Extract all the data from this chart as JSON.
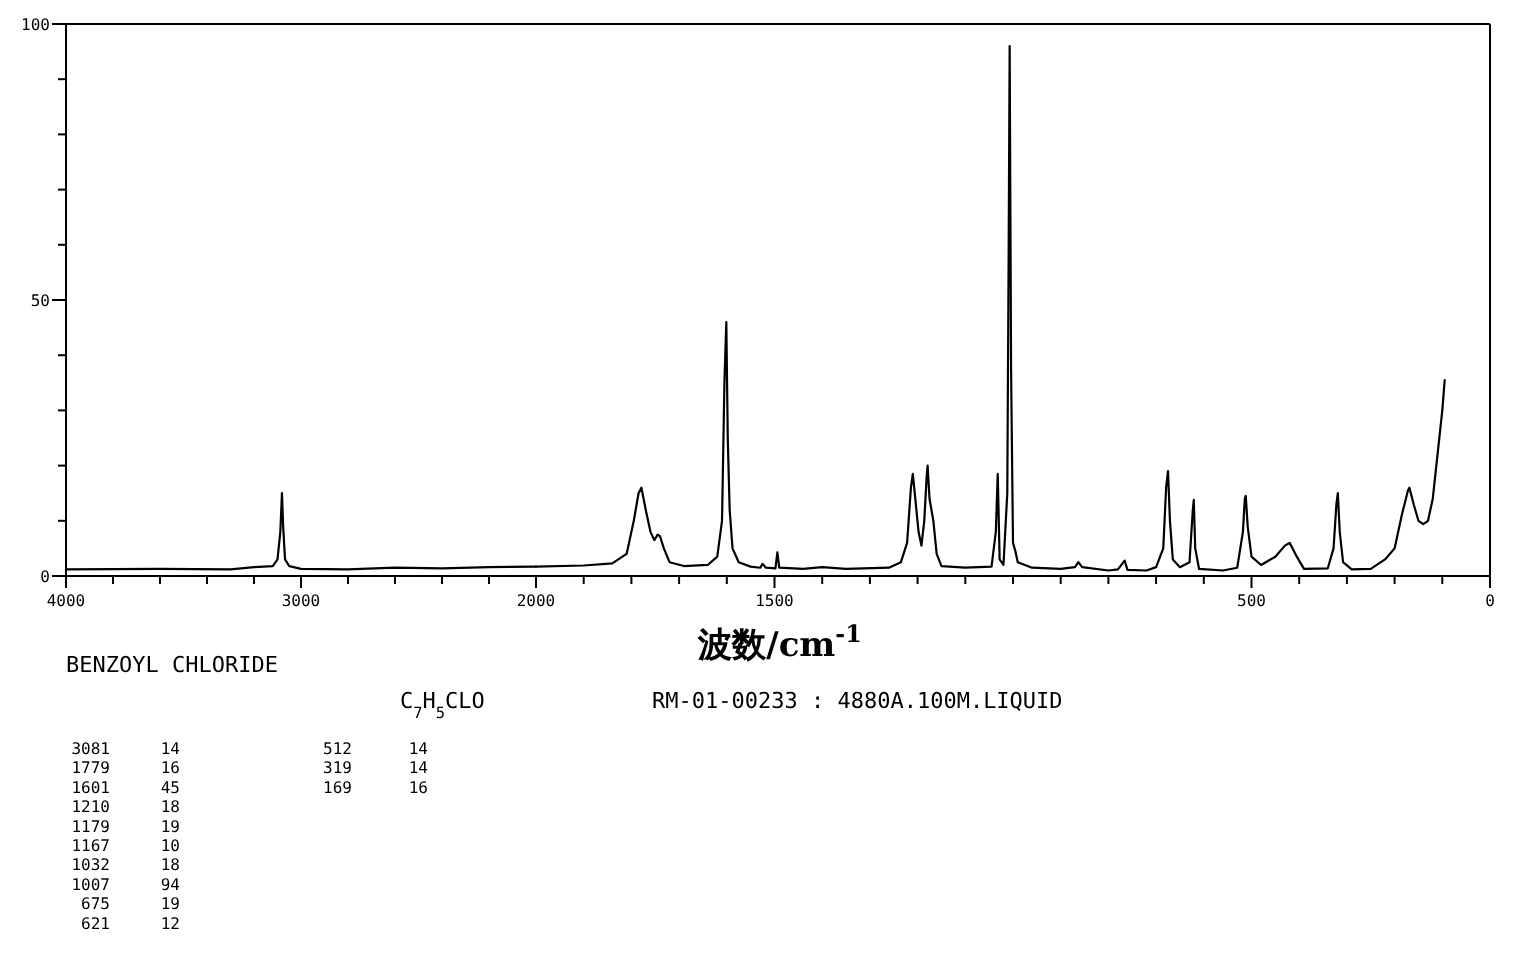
{
  "chart_data": [
    {
      "type": "line",
      "title": "BENZOYL CHLORIDE",
      "xlim": [
        4000,
        2000
      ],
      "ylim": [
        0,
        100
      ],
      "xticks": [
        4000,
        {
          "value": 3800,
          "label": null
        },
        {
          "value": 3600,
          "label": null
        },
        {
          "value": 3400,
          "label": null
        },
        {
          "value": 3200,
          "label": null
        },
        3000,
        {
          "value": 2800,
          "label": null
        },
        {
          "value": 2600,
          "label": null
        },
        {
          "value": 2400,
          "label": null
        },
        {
          "value": 2200,
          "label": null
        },
        2000
      ],
      "yticks": [
        0,
        {
          "value": 10,
          "label": null
        },
        {
          "value": 20,
          "label": null
        },
        {
          "value": 30,
          "label": null
        },
        {
          "value": 40,
          "label": null
        },
        50,
        {
          "value": 60,
          "label": null
        },
        {
          "value": 70,
          "label": null
        },
        {
          "value": 80,
          "label": null
        },
        {
          "value": 90,
          "label": null
        },
        100
      ],
      "grid": false,
      "marker": "none",
      "line_style": "solid",
      "annotations": [
        "C$_{7}$H$_{5}$CLO",
        "RM-01-00233 : 4880A.100M.LIQUID",
        "3081",
        "14",
        "1779",
        "16",
        "1601",
        "45",
        "1210",
        "18",
        "1179",
        "19",
        "1167",
        "10",
        "1032",
        "18",
        "1007",
        "94",
        "675",
        "19",
        "621",
        "12",
        "512",
        "14",
        "319",
        "14",
        "169",
        "16"
      ],
      "series": [
        {
          "color": "#000000",
          "x": [
            4000,
            3600,
            3300,
            3200,
            3120,
            3100,
            3088,
            3083,
            3081,
            3076,
            3068,
            3050,
            3000,
            2800,
            2600,
            2400,
            2200,
            2000
          ],
          "values": [
            1.2,
            1.3,
            1.2,
            1.6,
            1.8,
            3,
            8,
            13,
            15,
            9,
            3,
            1.8,
            1.3,
            1.2,
            1.5,
            1.4,
            1.6,
            1.7
          ]
        }
      ]
    },
    {
      "type": "line",
      "xlabel": "波数/cm$^{-1}$",
      "xlim": [
        2000,
        0
      ],
      "ylim": [
        0,
        100
      ],
      "tick_labels": "x",
      "xticks": [
        {
          "value": 1900,
          "label": null
        },
        {
          "value": 1800,
          "label": null
        },
        {
          "value": 1700,
          "label": null
        },
        {
          "value": 1600,
          "label": null
        },
        1500,
        {
          "value": 1400,
          "label": null
        },
        {
          "value": 1300,
          "label": null
        },
        {
          "value": 1200,
          "label": null
        },
        {
          "value": 1100,
          "label": null
        },
        {
          "value": 1000,
          "label": null
        },
        {
          "value": 900,
          "label": null
        },
        {
          "value": 800,
          "label": null
        },
        {
          "value": 700,
          "label": null
        },
        {
          "value": 600,
          "label": null
        },
        500,
        {
          "value": 400,
          "label": null
        },
        {
          "value": 300,
          "label": null
        },
        {
          "value": 200,
          "label": null
        },
        {
          "value": 100,
          "label": null
        },
        0
      ],
      "grid": false,
      "marker": "none",
      "line_style": "solid",
      "series": [
        {
          "color": "#000000",
          "x": [
            2000,
            1900,
            1840,
            1810,
            1795,
            1785,
            1779,
            1770,
            1760,
            1752,
            1745,
            1740,
            1732,
            1720,
            1690,
            1640,
            1620,
            1610,
            1605,
            1601,
            1598,
            1594,
            1588,
            1575,
            1550,
            1530,
            1525,
            1518,
            1498,
            1494,
            1490,
            1440,
            1400,
            1350,
            1260,
            1235,
            1222,
            1214,
            1210,
            1206,
            1198,
            1192,
            1186,
            1181,
            1179,
            1175,
            1167,
            1160,
            1150,
            1100,
            1045,
            1036,
            1032,
            1028,
            1020,
            1012,
            1009,
            1007,
            1004,
            1000,
            995,
            990,
            960,
            900,
            870,
            863,
            855,
            800,
            780,
            766,
            760,
            720,
            700,
            685,
            679,
            675,
            671,
            665,
            650,
            630,
            623,
            621,
            618,
            610,
            560,
            530,
            518,
            514,
            512,
            508,
            500,
            480,
            450,
            430,
            420,
            405,
            390,
            340,
            328,
            322,
            319,
            315,
            308,
            290,
            250,
            220,
            200,
            185,
            172,
            169,
            160,
            150,
            140,
            130,
            120,
            110,
            100,
            95
          ],
          "values": [
            1.7,
            1.9,
            2.3,
            4,
            10,
            15,
            16,
            12,
            8,
            6.5,
            7.5,
            7.2,
            5,
            2.5,
            1.8,
            2,
            3.5,
            10,
            35,
            46,
            25,
            12,
            5,
            2.5,
            1.7,
            1.5,
            2.2,
            1.5,
            1.4,
            4.3,
            1.5,
            1.3,
            1.6,
            1.3,
            1.5,
            2.5,
            6,
            16,
            18.5,
            15,
            8,
            5.5,
            10,
            18,
            20,
            14,
            10,
            4,
            1.8,
            1.5,
            1.7,
            8,
            18.5,
            3,
            2,
            15,
            60,
            96,
            37,
            6,
            4.5,
            2.5,
            1.5,
            1.3,
            1.6,
            2.5,
            1.6,
            1,
            1.2,
            2.8,
            1.1,
            1,
            1.6,
            5,
            16,
            19,
            10,
            3,
            1.6,
            2.5,
            12,
            13.8,
            5,
            1.3,
            1,
            1.5,
            8,
            14,
            14.5,
            9,
            3.5,
            2,
            3.5,
            5.5,
            6,
            3.5,
            1.3,
            1.4,
            5,
            13,
            15,
            8,
            2.5,
            1.2,
            1.3,
            3,
            5,
            11,
            15.5,
            16,
            13,
            10,
            9.4,
            10,
            14,
            22,
            30,
            35.5
          ]
        }
      ]
    }
  ]
}
